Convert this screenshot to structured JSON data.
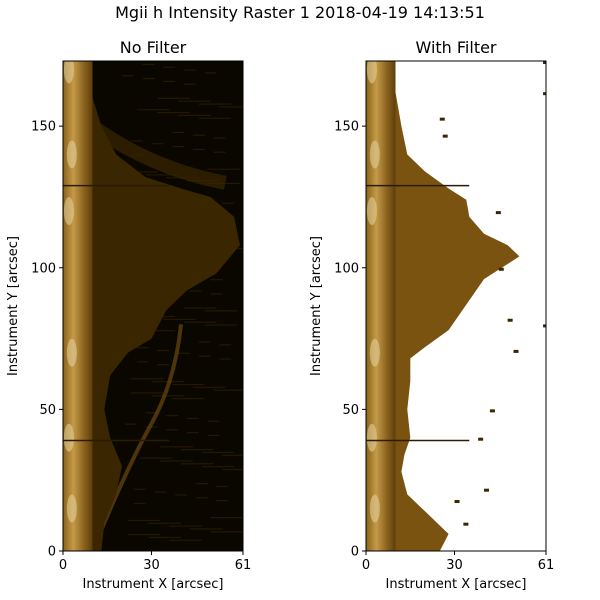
{
  "figure": {
    "title": "Mgii h Intensity Raster 1 2018-04-19 14:13:51"
  },
  "chart_data": [
    {
      "type": "heatmap",
      "title": "No Filter",
      "xlabel": "Instrument X [arcsec]",
      "ylabel": "Instrument Y [arcsec]",
      "xlim": [
        0,
        61
      ],
      "ylim": [
        0,
        173
      ],
      "xticks": [
        0,
        30,
        61
      ],
      "yticks": [
        0,
        50,
        100,
        150
      ],
      "colormap": [
        "#0a0700",
        "#3a2600",
        "#7a5310",
        "#b48a3a",
        "#e8d3a0"
      ],
      "masked": false
    },
    {
      "type": "heatmap",
      "title": "With Filter",
      "xlabel": "Instrument X [arcsec]",
      "ylabel": "Instrument Y [arcsec]",
      "xlim": [
        0,
        61
      ],
      "ylim": [
        0,
        173
      ],
      "xticks": [
        0,
        30,
        61
      ],
      "yticks": [
        0,
        50,
        100,
        150
      ],
      "colormap": [
        "#0a0700",
        "#3a2600",
        "#7a5310",
        "#b48a3a",
        "#e8d3a0"
      ],
      "masked": true
    }
  ]
}
